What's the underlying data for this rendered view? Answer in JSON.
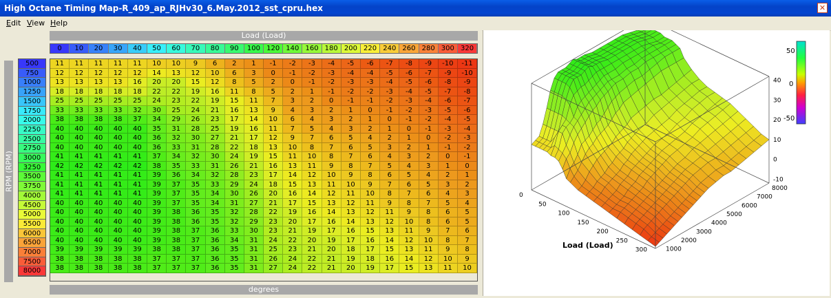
{
  "window": {
    "title": "High Octane Timing Map-R_409_ap_RJHv30_6.May.2012_sst_cpru.hex",
    "close_glyph": "✕"
  },
  "menu": [
    {
      "mnemonic": "E",
      "rest": "dit"
    },
    {
      "mnemonic": "V",
      "rest": "iew"
    },
    {
      "mnemonic": "H",
      "rest": "elp"
    }
  ],
  "table": {
    "x_axis_title": "Load (Load)",
    "y_axis_title": "RPM (RPM)",
    "units_label": "degrees",
    "load_values": [
      "0",
      "10",
      "20",
      "30",
      "40",
      "50",
      "60",
      "70",
      "80",
      "90",
      "100",
      "120",
      "140",
      "160",
      "180",
      "200",
      "220",
      "240",
      "260",
      "280",
      "300",
      "320"
    ],
    "rpm_values": [
      "500",
      "750",
      "1000",
      "1250",
      "1500",
      "1750",
      "2000",
      "2250",
      "2500",
      "2750",
      "3000",
      "3250",
      "3500",
      "3750",
      "4000",
      "4500",
      "5000",
      "5500",
      "6000",
      "6500",
      "7000",
      "7500",
      "8000"
    ],
    "cells": [
      [
        11,
        11,
        11,
        11,
        11,
        10,
        10,
        9,
        6,
        2,
        1,
        -1,
        -2,
        -3,
        -4,
        -5,
        -6,
        -7,
        -8,
        -9,
        -10,
        -11
      ],
      [
        12,
        12,
        12,
        12,
        12,
        14,
        13,
        12,
        10,
        6,
        3,
        0,
        -1,
        -2,
        -3,
        -4,
        -4,
        -5,
        -6,
        -7,
        -9,
        -10
      ],
      [
        13,
        13,
        13,
        13,
        16,
        20,
        20,
        15,
        12,
        8,
        5,
        2,
        0,
        -1,
        -2,
        -3,
        -3,
        -4,
        -5,
        -6,
        -8,
        -9
      ],
      [
        18,
        18,
        18,
        18,
        18,
        22,
        22,
        19,
        16,
        11,
        8,
        5,
        2,
        1,
        -1,
        -2,
        -2,
        -3,
        -4,
        -5,
        -7,
        -8
      ],
      [
        25,
        25,
        25,
        25,
        25,
        24,
        23,
        22,
        19,
        15,
        11,
        7,
        3,
        2,
        0,
        -1,
        -1,
        -2,
        -3,
        -4,
        -6,
        -7
      ],
      [
        33,
        33,
        33,
        33,
        32,
        30,
        25,
        24,
        21,
        16,
        13,
        9,
        4,
        3,
        2,
        1,
        0,
        -1,
        -2,
        -3,
        -5,
        -6
      ],
      [
        38,
        38,
        38,
        38,
        37,
        34,
        29,
        26,
        23,
        17,
        14,
        10,
        6,
        4,
        3,
        2,
        1,
        0,
        -1,
        -2,
        -4,
        -5
      ],
      [
        40,
        40,
        40,
        40,
        40,
        35,
        31,
        28,
        25,
        19,
        16,
        11,
        7,
        5,
        4,
        3,
        2,
        1,
        0,
        -1,
        -3,
        -4
      ],
      [
        40,
        40,
        40,
        40,
        40,
        36,
        32,
        30,
        27,
        21,
        17,
        12,
        9,
        7,
        6,
        5,
        4,
        2,
        1,
        0,
        -2,
        -3
      ],
      [
        40,
        40,
        40,
        40,
        40,
        36,
        33,
        31,
        28,
        22,
        18,
        13,
        10,
        8,
        7,
        6,
        5,
        3,
        2,
        1,
        -1,
        -2
      ],
      [
        41,
        41,
        41,
        41,
        41,
        37,
        34,
        32,
        30,
        24,
        19,
        15,
        11,
        10,
        8,
        7,
        6,
        4,
        3,
        2,
        0,
        -1
      ],
      [
        42,
        42,
        42,
        42,
        42,
        38,
        35,
        33,
        31,
        26,
        21,
        16,
        13,
        11,
        9,
        8,
        7,
        5,
        4,
        3,
        1,
        0
      ],
      [
        41,
        41,
        41,
        41,
        41,
        39,
        36,
        34,
        32,
        28,
        23,
        17,
        14,
        12,
        10,
        9,
        8,
        6,
        5,
        4,
        2,
        1
      ],
      [
        41,
        41,
        41,
        41,
        41,
        39,
        37,
        35,
        33,
        29,
        24,
        18,
        15,
        13,
        11,
        10,
        9,
        7,
        6,
        5,
        3,
        2
      ],
      [
        41,
        41,
        41,
        41,
        41,
        39,
        37,
        35,
        34,
        30,
        26,
        20,
        16,
        14,
        12,
        11,
        10,
        8,
        7,
        6,
        4,
        3
      ],
      [
        40,
        40,
        40,
        40,
        40,
        39,
        37,
        35,
        34,
        31,
        27,
        21,
        17,
        15,
        13,
        12,
        11,
        9,
        8,
        7,
        5,
        4
      ],
      [
        40,
        40,
        40,
        40,
        40,
        39,
        38,
        36,
        35,
        32,
        28,
        22,
        19,
        16,
        14,
        13,
        12,
        11,
        9,
        8,
        6,
        5
      ],
      [
        40,
        40,
        40,
        40,
        40,
        39,
        38,
        36,
        35,
        32,
        29,
        23,
        20,
        17,
        16,
        14,
        13,
        12,
        10,
        8,
        6,
        5
      ],
      [
        40,
        40,
        40,
        40,
        40,
        39,
        38,
        37,
        36,
        33,
        30,
        23,
        21,
        19,
        17,
        16,
        15,
        13,
        11,
        9,
        7,
        6
      ],
      [
        40,
        40,
        40,
        40,
        40,
        39,
        38,
        37,
        36,
        34,
        31,
        24,
        22,
        20,
        19,
        17,
        16,
        14,
        12,
        10,
        8,
        7
      ],
      [
        39,
        39,
        39,
        39,
        39,
        38,
        38,
        37,
        36,
        35,
        31,
        25,
        23,
        21,
        20,
        18,
        17,
        15,
        13,
        11,
        9,
        8
      ],
      [
        38,
        38,
        38,
        38,
        38,
        37,
        37,
        37,
        36,
        35,
        31,
        26,
        24,
        22,
        21,
        19,
        18,
        16,
        14,
        12,
        10,
        9
      ],
      [
        38,
        38,
        38,
        38,
        38,
        37,
        37,
        37,
        36,
        35,
        31,
        27,
        24,
        22,
        21,
        20,
        19,
        17,
        15,
        13,
        11,
        10
      ]
    ]
  },
  "chart3d": {
    "x_axis_label": "Load (Load)",
    "x_ticks": [
      "0",
      "50",
      "100",
      "150",
      "200",
      "250",
      "300"
    ],
    "y_ticks": [
      "1000",
      "2000",
      "3000",
      "4000",
      "5000",
      "6000",
      "7000",
      "8000"
    ],
    "z_ticks": [
      "-10",
      "0",
      "10",
      "20",
      "30",
      "40"
    ],
    "colorbar_ticks": [
      "50",
      "0",
      "-50"
    ]
  },
  "colors": {
    "title_blue": "#0454d8",
    "panel_bg": "#ece9d8",
    "header_gray": "#a8a8a8"
  }
}
